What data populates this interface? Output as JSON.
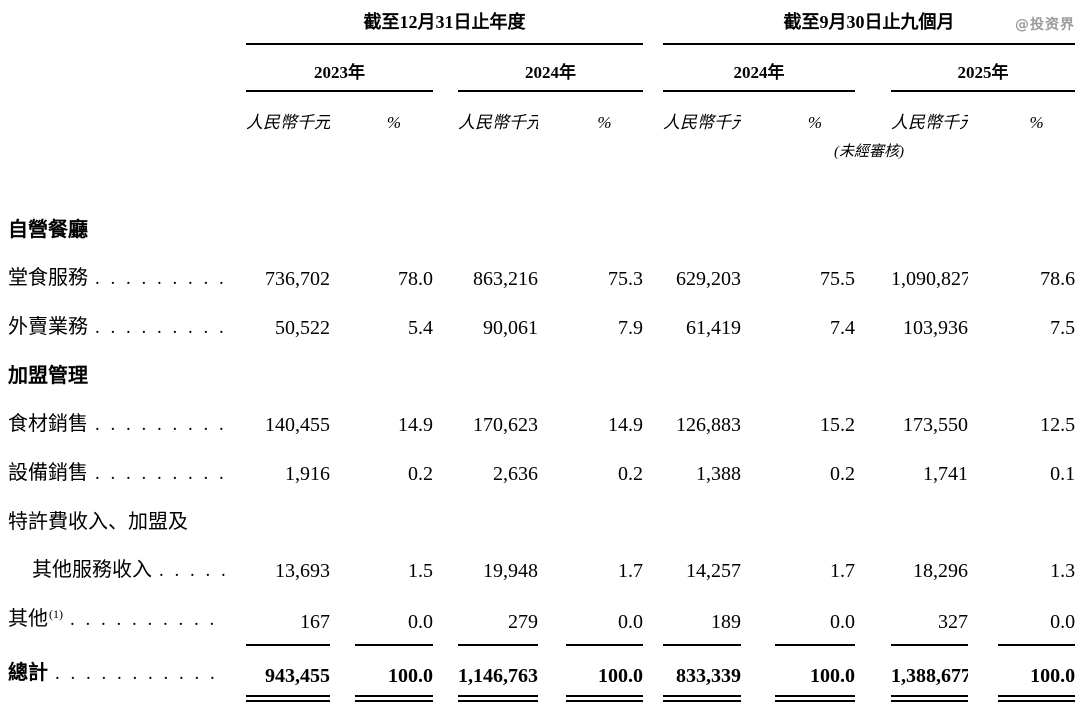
{
  "watermark": "@投资界",
  "header": {
    "period_groups": [
      {
        "title": "截至12月31日止年度",
        "years": [
          "2023年",
          "2024年"
        ]
      },
      {
        "title": "截至9月30日止九個月",
        "years": [
          "2024年",
          "2025年"
        ]
      }
    ],
    "unit_label": "人民幣千元",
    "percent_label": "%",
    "unaudited_note": "(未經審核)"
  },
  "leader_dots": ". . . . . . . . . . . . . . . . . . . . . . . . . . . . . . . . . . . . . . . .",
  "rows": [
    {
      "type": "section",
      "label": "自營餐廳"
    },
    {
      "type": "data",
      "label": "堂食服務",
      "values": [
        "736,702",
        "78.0",
        "863,216",
        "75.3",
        "629,203",
        "75.5",
        "1,090,827",
        "78.6"
      ]
    },
    {
      "type": "data",
      "label": "外賣業務",
      "values": [
        "50,522",
        "5.4",
        "90,061",
        "7.9",
        "61,419",
        "7.4",
        "103,936",
        "7.5"
      ]
    },
    {
      "type": "section",
      "label": "加盟管理"
    },
    {
      "type": "data",
      "label": "食材銷售",
      "values": [
        "140,455",
        "14.9",
        "170,623",
        "14.9",
        "126,883",
        "15.2",
        "173,550",
        "12.5"
      ]
    },
    {
      "type": "data",
      "label": "設備銷售",
      "values": [
        "1,916",
        "0.2",
        "2,636",
        "0.2",
        "1,388",
        "0.2",
        "1,741",
        "0.1"
      ]
    },
    {
      "type": "wrap",
      "label": "特許費收入、加盟及"
    },
    {
      "type": "data",
      "label": "其他服務收入",
      "indent": true,
      "values": [
        "13,693",
        "1.5",
        "19,948",
        "1.7",
        "14,257",
        "1.7",
        "18,296",
        "1.3"
      ]
    },
    {
      "type": "data",
      "label": "其他",
      "sup": "(1)",
      "rule_below": true,
      "values": [
        "167",
        "0.0",
        "279",
        "0.0",
        "189",
        "0.0",
        "327",
        "0.0"
      ]
    },
    {
      "type": "total",
      "label": "總計",
      "values": [
        "943,455",
        "100.0",
        "1,146,763",
        "100.0",
        "833,339",
        "100.0",
        "1,388,677",
        "100.0"
      ]
    }
  ]
}
